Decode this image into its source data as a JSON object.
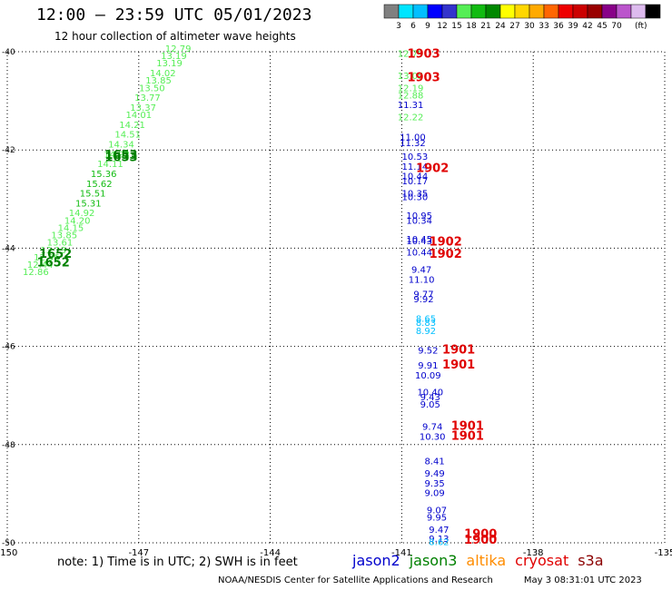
{
  "title": "12:00 – 23:59 UTC 05/01/2023",
  "subtitle": "12 hour collection of altimeter wave heights",
  "note": "note:  1) Time is in UTC; 2) SWH is in feet",
  "footer": {
    "credit": "NOAA/NESDIS Center for Satellite Applications and Research",
    "timestamp": "May  3 08:31:01 UTC 2023"
  },
  "satellites": [
    {
      "name": "jason2",
      "color": "#0000cc"
    },
    {
      "name": "jason3",
      "color": "#008000"
    },
    {
      "name": "altika",
      "color": "#ff8c00"
    },
    {
      "name": "cryosat",
      "color": "#e00000"
    },
    {
      "name": "s3a",
      "color": "#8b0000"
    }
  ],
  "colorbar": {
    "unit": "(ft)",
    "labels": [
      "3",
      "6",
      "9",
      "12",
      "15",
      "18",
      "21",
      "24",
      "27",
      "30",
      "33",
      "36",
      "39",
      "42",
      "45",
      "70"
    ],
    "colors": [
      "#808080",
      "#00e5ff",
      "#00bfff",
      "#0000ff",
      "#3333cc",
      "#55ee55",
      "#11bb11",
      "#008800",
      "#ffff00",
      "#ffd700",
      "#ffaa00",
      "#ff6600",
      "#ee0000",
      "#cc0000",
      "#990000",
      "#880088",
      "#bb55cc",
      "#ddbbee",
      "#000000"
    ]
  },
  "chart_data": {
    "type": "scatter",
    "title": "12:00 – 23:59 UTC 05/01/2023",
    "xlim": [
      -150,
      -135
    ],
    "ylim": [
      -50,
      -40
    ],
    "x_ticks": [
      "-150",
      "-147",
      "-144",
      "-141",
      "-138",
      "-135"
    ],
    "y_ticks": [
      "-40",
      "-42",
      "-44",
      "-46",
      "-48",
      "-50"
    ],
    "x_tick_values": [
      -150,
      -147,
      -144,
      -141,
      -138,
      -135
    ],
    "y_tick_values": [
      -40,
      -42,
      -44,
      -46,
      -48,
      -50
    ],
    "grid": true,
    "wave_heights": [
      {
        "x": -140.8,
        "y": -40.1,
        "v": "12.79",
        "c": "#55ee55"
      },
      {
        "x": -140.8,
        "y": -40.55,
        "v": "13.05",
        "c": "#55ee55"
      },
      {
        "x": -140.8,
        "y": -40.8,
        "v": "12.19",
        "c": "#55ee55"
      },
      {
        "x": -140.8,
        "y": -40.95,
        "v": "12.88",
        "c": "#55ee55"
      },
      {
        "x": -140.8,
        "y": -41.15,
        "v": "11.31",
        "c": "#0000cc"
      },
      {
        "x": -140.8,
        "y": -41.4,
        "v": "12.22",
        "c": "#55ee55"
      },
      {
        "x": -140.75,
        "y": -41.8,
        "v": "11.00",
        "c": "#0000cc"
      },
      {
        "x": -140.75,
        "y": -41.92,
        "v": "11.32",
        "c": "#0000cc"
      },
      {
        "x": -140.7,
        "y": -42.2,
        "v": "10.53",
        "c": "#0000cc"
      },
      {
        "x": -140.7,
        "y": -42.4,
        "v": "11.14",
        "c": "#0000cc"
      },
      {
        "x": -140.7,
        "y": -42.6,
        "v": "10.44",
        "c": "#0000cc"
      },
      {
        "x": -140.7,
        "y": -42.7,
        "v": "10.17",
        "c": "#0000cc"
      },
      {
        "x": -140.7,
        "y": -42.95,
        "v": "10.35",
        "c": "#0000cc"
      },
      {
        "x": -140.7,
        "y": -43.02,
        "v": "10.30",
        "c": "#0000cc"
      },
      {
        "x": -140.6,
        "y": -43.4,
        "v": "10.95",
        "c": "#0000cc"
      },
      {
        "x": -140.6,
        "y": -43.5,
        "v": "10.34",
        "c": "#0000cc"
      },
      {
        "x": -140.6,
        "y": -43.88,
        "v": "10.45",
        "c": "#0000cc"
      },
      {
        "x": -140.6,
        "y": -43.92,
        "v": "10.43",
        "c": "#0000cc"
      },
      {
        "x": -140.6,
        "y": -44.15,
        "v": "10.44",
        "c": "#0000cc"
      },
      {
        "x": -140.55,
        "y": -44.5,
        "v": "9.47",
        "c": "#0000cc"
      },
      {
        "x": -140.55,
        "y": -44.7,
        "v": "11.10",
        "c": "#0000cc"
      },
      {
        "x": -140.5,
        "y": -45.0,
        "v": "9.77",
        "c": "#0000cc"
      },
      {
        "x": -140.5,
        "y": -45.1,
        "v": "9.92",
        "c": "#0000cc"
      },
      {
        "x": -140.45,
        "y": -45.5,
        "v": "8.65",
        "c": "#00bfff"
      },
      {
        "x": -140.45,
        "y": -45.58,
        "v": "8.83",
        "c": "#00bfff"
      },
      {
        "x": -140.45,
        "y": -45.75,
        "v": "8.92",
        "c": "#00bfff"
      },
      {
        "x": -140.4,
        "y": -46.15,
        "v": "9.52",
        "c": "#0000cc"
      },
      {
        "x": -140.4,
        "y": -46.45,
        "v": "9.91",
        "c": "#0000cc"
      },
      {
        "x": -140.4,
        "y": -46.65,
        "v": "10.09",
        "c": "#0000cc"
      },
      {
        "x": -140.35,
        "y": -47.0,
        "v": "10.40",
        "c": "#0000cc"
      },
      {
        "x": -140.35,
        "y": -47.1,
        "v": "9.43",
        "c": "#0000cc"
      },
      {
        "x": -140.35,
        "y": -47.25,
        "v": "9.05",
        "c": "#0000cc"
      },
      {
        "x": -140.3,
        "y": -47.7,
        "v": "9.74",
        "c": "#0000cc"
      },
      {
        "x": -140.3,
        "y": -47.9,
        "v": "10.30",
        "c": "#0000cc"
      },
      {
        "x": -140.25,
        "y": -48.4,
        "v": "8.41",
        "c": "#0000cc"
      },
      {
        "x": -140.25,
        "y": -48.65,
        "v": "9.49",
        "c": "#0000cc"
      },
      {
        "x": -140.25,
        "y": -48.85,
        "v": "9.35",
        "c": "#0000cc"
      },
      {
        "x": -140.25,
        "y": -49.05,
        "v": "9.09",
        "c": "#0000cc"
      },
      {
        "x": -140.2,
        "y": -49.4,
        "v": "9.07",
        "c": "#0000cc"
      },
      {
        "x": -140.2,
        "y": -49.55,
        "v": "9.95",
        "c": "#0000cc"
      },
      {
        "x": -140.15,
        "y": -49.8,
        "v": "9.47",
        "c": "#0000cc"
      },
      {
        "x": -140.15,
        "y": -49.98,
        "v": "9.13",
        "c": "#0000cc"
      },
      {
        "x": -140.15,
        "y": -50.05,
        "v": "8.62",
        "c": "#00bfff"
      },
      {
        "x": -146.1,
        "y": -40.0,
        "v": "12.79",
        "c": "#55ee55"
      },
      {
        "x": -146.2,
        "y": -40.15,
        "v": "13.19",
        "c": "#55ee55"
      },
      {
        "x": -146.3,
        "y": -40.3,
        "v": "13.19",
        "c": "#55ee55"
      },
      {
        "x": -146.45,
        "y": -40.5,
        "v": "14.02",
        "c": "#55ee55"
      },
      {
        "x": -146.55,
        "y": -40.65,
        "v": "13.85",
        "c": "#55ee55"
      },
      {
        "x": -146.7,
        "y": -40.8,
        "v": "13.50",
        "c": "#55ee55"
      },
      {
        "x": -146.8,
        "y": -41.0,
        "v": "13.77",
        "c": "#55ee55"
      },
      {
        "x": -146.9,
        "y": -41.2,
        "v": "13.37",
        "c": "#55ee55"
      },
      {
        "x": -147.0,
        "y": -41.35,
        "v": "14.01",
        "c": "#55ee55"
      },
      {
        "x": -147.15,
        "y": -41.55,
        "v": "14.21",
        "c": "#55ee55"
      },
      {
        "x": -147.25,
        "y": -41.75,
        "v": "14.51",
        "c": "#55ee55"
      },
      {
        "x": -147.4,
        "y": -41.95,
        "v": "14.34",
        "c": "#55ee55"
      },
      {
        "x": -147.5,
        "y": -42.15,
        "v": "14.92",
        "c": "#55ee55"
      },
      {
        "x": -147.65,
        "y": -42.35,
        "v": "14.11",
        "c": "#55ee55"
      },
      {
        "x": -147.8,
        "y": -42.55,
        "v": "15.36",
        "c": "#11bb11"
      },
      {
        "x": -147.9,
        "y": -42.75,
        "v": "15.62",
        "c": "#11bb11"
      },
      {
        "x": -148.05,
        "y": -42.95,
        "v": "15.51",
        "c": "#11bb11"
      },
      {
        "x": -148.15,
        "y": -43.15,
        "v": "15.31",
        "c": "#11bb11"
      },
      {
        "x": -148.3,
        "y": -43.35,
        "v": "14.92",
        "c": "#55ee55"
      },
      {
        "x": -148.4,
        "y": -43.5,
        "v": "14.20",
        "c": "#55ee55"
      },
      {
        "x": -148.55,
        "y": -43.65,
        "v": "14.15",
        "c": "#55ee55"
      },
      {
        "x": -148.7,
        "y": -43.8,
        "v": "13.85",
        "c": "#55ee55"
      },
      {
        "x": -148.8,
        "y": -43.95,
        "v": "13.61",
        "c": "#55ee55"
      },
      {
        "x": -148.95,
        "y": -44.1,
        "v": "13.13",
        "c": "#55ee55"
      },
      {
        "x": -149.1,
        "y": -44.25,
        "v": "12.96",
        "c": "#55ee55"
      },
      {
        "x": -149.25,
        "y": -44.4,
        "v": "12.44",
        "c": "#55ee55"
      },
      {
        "x": -149.35,
        "y": -44.55,
        "v": "12.86",
        "c": "#55ee55"
      }
    ],
    "time_labels": [
      {
        "x": -140.5,
        "y": -40.12,
        "v": "1903",
        "c": "#e00000"
      },
      {
        "x": -140.5,
        "y": -40.6,
        "v": "1903",
        "c": "#e00000"
      },
      {
        "x": -140.3,
        "y": -42.45,
        "v": "1902",
        "c": "#e00000"
      },
      {
        "x": -140.0,
        "y": -43.95,
        "v": "1902",
        "c": "#e00000"
      },
      {
        "x": -140.0,
        "y": -44.2,
        "v": "1902",
        "c": "#e00000"
      },
      {
        "x": -139.7,
        "y": -46.15,
        "v": "1901",
        "c": "#e00000"
      },
      {
        "x": -139.7,
        "y": -46.45,
        "v": "1901",
        "c": "#e00000"
      },
      {
        "x": -139.5,
        "y": -47.7,
        "v": "1901",
        "c": "#e00000"
      },
      {
        "x": -139.5,
        "y": -47.9,
        "v": "1901",
        "c": "#e00000"
      },
      {
        "x": -139.2,
        "y": -49.9,
        "v": "1900",
        "c": "#e00000"
      },
      {
        "x": -139.2,
        "y": -50.02,
        "v": "1900",
        "c": "#e00000"
      },
      {
        "x": -147.4,
        "y": -42.18,
        "v": "1653",
        "c": "#008000"
      },
      {
        "x": -147.4,
        "y": -42.23,
        "v": "1653",
        "c": "#008000"
      },
      {
        "x": -148.9,
        "y": -44.2,
        "v": "1652",
        "c": "#008000"
      },
      {
        "x": -148.95,
        "y": -44.37,
        "v": "1652",
        "c": "#008000"
      }
    ]
  }
}
